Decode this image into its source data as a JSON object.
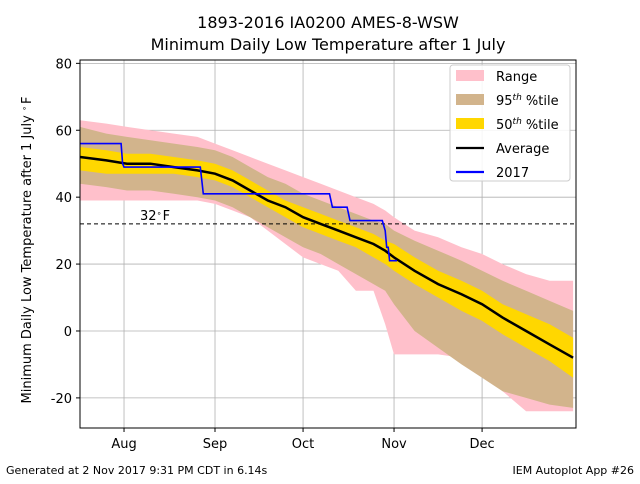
{
  "chart_data": {
    "type": "area",
    "title": "1893-2016 IA0200 AMES-8-WSW",
    "subtitle": "Minimum Daily Low Temperature after 1 July",
    "ylabel": "Minimum Daily Low Temperature after 1 July",
    "ylabel_unit": "°F",
    "xlabel": "",
    "x_unit": "day of year (1 Jul = 182)",
    "xlim": [
      198,
      367
    ],
    "ylim": [
      -29,
      81
    ],
    "grid": true,
    "legend_position": "upper right",
    "x_ticks": [
      {
        "value": 213,
        "label": "Aug"
      },
      {
        "value": 244,
        "label": "Sep"
      },
      {
        "value": 274,
        "label": "Oct"
      },
      {
        "value": 305,
        "label": "Nov"
      },
      {
        "value": 335,
        "label": "Dec"
      }
    ],
    "y_ticks": [
      -20,
      0,
      20,
      40,
      60,
      80
    ],
    "threshold": {
      "value": 32,
      "label": "32",
      "unit": "F",
      "style": "dashed"
    },
    "legend": [
      {
        "label": "Range",
        "color": "#FFC0CB"
      },
      {
        "label": "95",
        "sup": "th",
        "suffix": " %tile",
        "color": "#D2B48C"
      },
      {
        "label": "50",
        "sup": "th",
        "suffix": " %tile",
        "color": "#FFD700"
      },
      {
        "label": "Average",
        "color": "#000000"
      },
      {
        "label": "2017",
        "color": "#0000FF"
      }
    ],
    "x": [
      198,
      207,
      214,
      222,
      230,
      238,
      244,
      250,
      256,
      262,
      268,
      274,
      280,
      286,
      292,
      298,
      302,
      305,
      312,
      320,
      328,
      335,
      342,
      350,
      358,
      366
    ],
    "series": [
      {
        "name": "Range",
        "color": "#FFC0CB",
        "upper": [
          63,
          62,
          61,
          60,
          59,
          58,
          56,
          54,
          52,
          50,
          48,
          46,
          44,
          42,
          40,
          38,
          36,
          34,
          30,
          28,
          25,
          23,
          20,
          17,
          15,
          15
        ],
        "lower": [
          39,
          39,
          39,
          39,
          39,
          39,
          38,
          36,
          34,
          30,
          26,
          22,
          20,
          18,
          12,
          12,
          2,
          -7,
          -7,
          -7,
          -8,
          -10,
          -18,
          -24,
          -24,
          -24
        ]
      },
      {
        "name": "95th %tile",
        "color": "#D2B48C",
        "upper": [
          61,
          59,
          58,
          57,
          56,
          55,
          54,
          52,
          49,
          46,
          44,
          41,
          39,
          37,
          35,
          33,
          32,
          30,
          27,
          24,
          21,
          18,
          15,
          12,
          9,
          6
        ],
        "lower": [
          44,
          43,
          42,
          42,
          41,
          40,
          39,
          37,
          34,
          31,
          28,
          25,
          23,
          20,
          17,
          14,
          12,
          8,
          0,
          -5,
          -10,
          -14,
          -18,
          -20,
          -22,
          -23
        ]
      },
      {
        "name": "50th %tile",
        "color": "#FFD700",
        "upper": [
          55,
          54,
          53,
          53,
          52,
          51,
          50,
          48,
          45,
          42,
          39,
          37,
          35,
          33,
          31,
          29,
          27,
          26,
          22,
          18,
          15,
          12,
          8,
          5,
          2,
          -2
        ],
        "lower": [
          48,
          47,
          47,
          47,
          47,
          46,
          45,
          43,
          40,
          37,
          34,
          31,
          29,
          27,
          25,
          22,
          20,
          18,
          14,
          10,
          6,
          3,
          -1,
          -5,
          -9,
          -14
        ]
      },
      {
        "name": "Average",
        "color": "#000000",
        "values": [
          52,
          51,
          50,
          50,
          49,
          48,
          47,
          45,
          42,
          39,
          37,
          34,
          32,
          30,
          28,
          26,
          24,
          22,
          18,
          14,
          11,
          8,
          4,
          0,
          -4,
          -8
        ]
      },
      {
        "name": "2017",
        "color": "#0000FF",
        "x": [
          198,
          212,
          212.5,
          213,
          234,
          235,
          239,
          239.5,
          240,
          283,
          284,
          289,
          290,
          301,
          302,
          302.5,
          303,
          303.5,
          305,
          306
        ],
        "values": [
          56,
          56,
          50,
          49,
          49,
          49,
          49,
          45,
          41,
          41,
          37,
          37,
          33,
          33,
          30,
          25,
          25,
          21,
          21,
          21
        ]
      }
    ]
  },
  "footer": {
    "left": "Generated at 2 Nov 2017 9:31 PM CDT in 6.14s",
    "right": "IEM Autoplot App #26"
  }
}
